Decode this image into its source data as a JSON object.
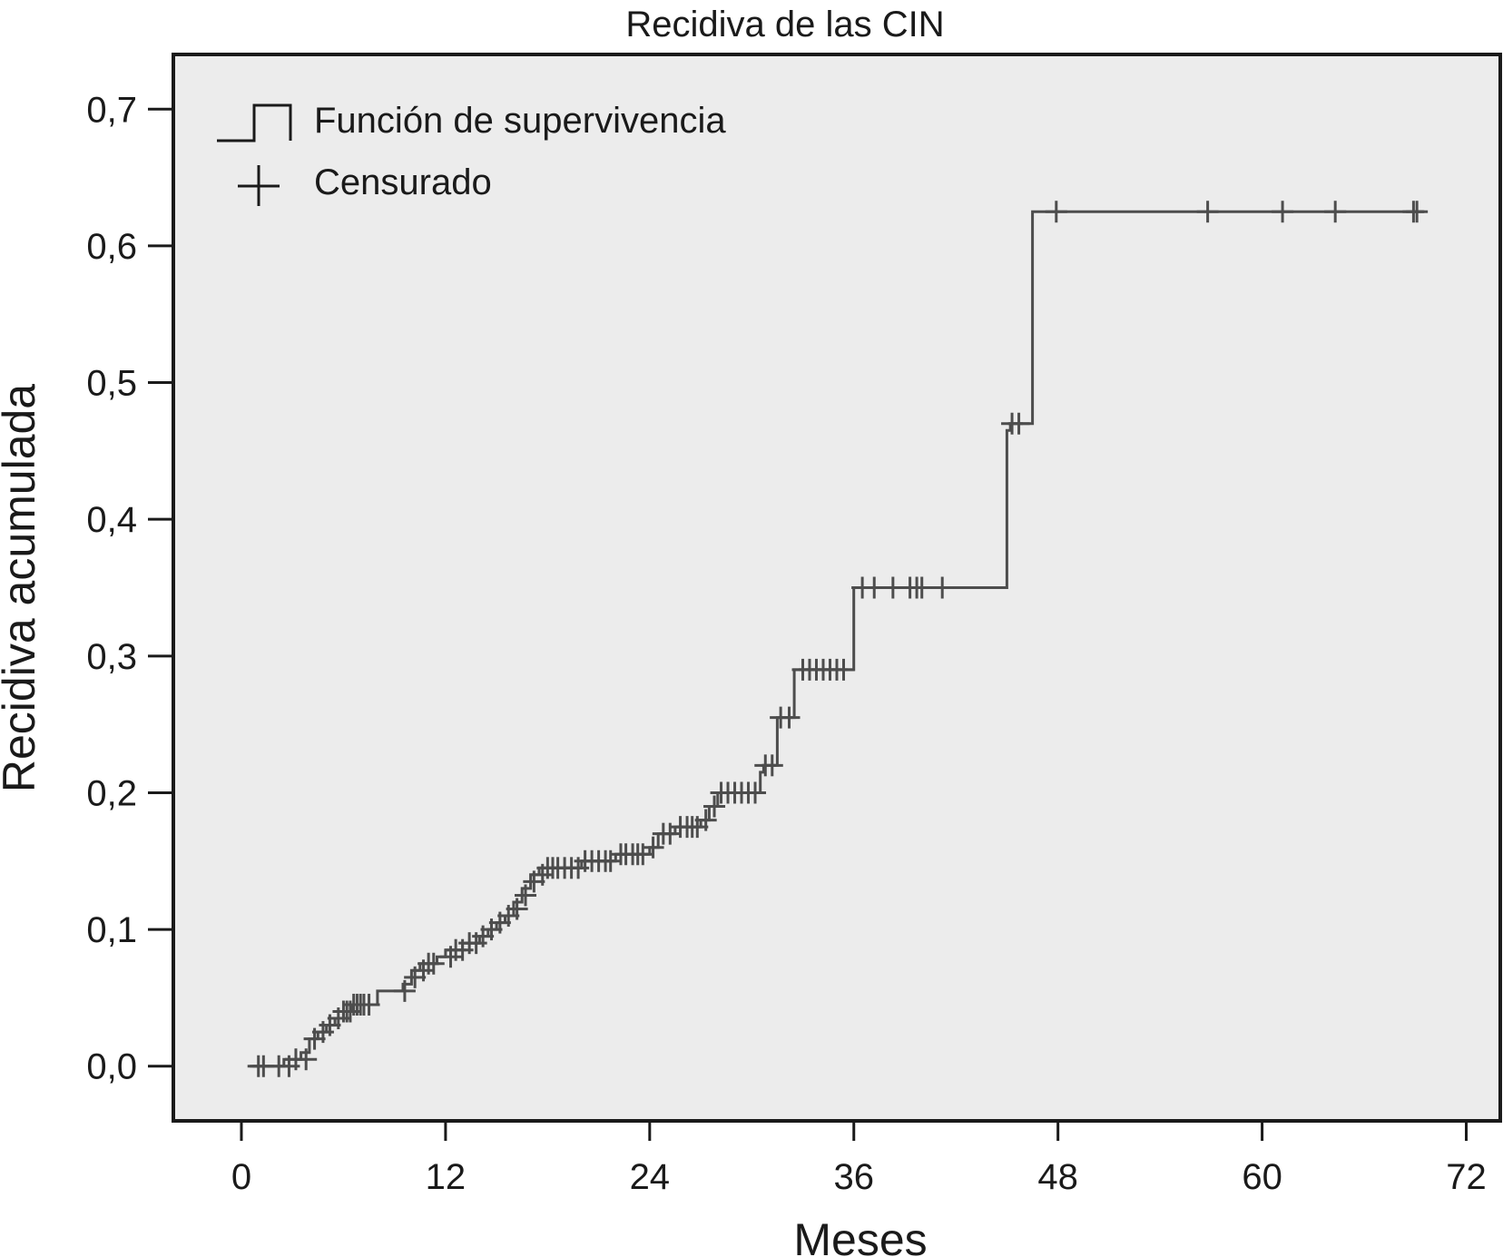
{
  "chart_data": {
    "type": "line",
    "title": "Recidiva de las CIN",
    "xlabel": "Meses",
    "ylabel": "Recidiva acumulada",
    "xlim": [
      -4,
      74
    ],
    "ylim": [
      -0.04,
      0.74
    ],
    "x_ticks": [
      0,
      12,
      24,
      36,
      48,
      60,
      72
    ],
    "x_tick_labels": [
      "0",
      "12",
      "24",
      "36",
      "48",
      "60",
      "72"
    ],
    "y_ticks": [
      0.0,
      0.1,
      0.2,
      0.3,
      0.4,
      0.5,
      0.6,
      0.7
    ],
    "y_tick_labels": [
      "0,0",
      "0,1",
      "0,2",
      "0,3",
      "0,4",
      "0,5",
      "0,6",
      "0,7"
    ],
    "grid": false,
    "legend_position": "top-left",
    "colors": {
      "line": "#4d4d4d",
      "plot_background": "#ececec",
      "axis": "#1a1a1a"
    },
    "legend": [
      {
        "label": "Función de supervivencia",
        "symbol": "step-line"
      },
      {
        "label": "Censurado",
        "symbol": "plus"
      }
    ],
    "series": [
      {
        "name": "Función de supervivencia",
        "points": [
          [
            0.5,
            0.0
          ],
          [
            2.5,
            0.0
          ],
          [
            2.5,
            0.005
          ],
          [
            3.5,
            0.005
          ],
          [
            3.5,
            0.01
          ],
          [
            4.0,
            0.01
          ],
          [
            4.0,
            0.02
          ],
          [
            4.5,
            0.02
          ],
          [
            4.5,
            0.025
          ],
          [
            5.0,
            0.025
          ],
          [
            5.0,
            0.03
          ],
          [
            5.5,
            0.03
          ],
          [
            5.5,
            0.035
          ],
          [
            6.0,
            0.035
          ],
          [
            6.0,
            0.04
          ],
          [
            6.5,
            0.04
          ],
          [
            6.5,
            0.045
          ],
          [
            8.0,
            0.045
          ],
          [
            8.0,
            0.055
          ],
          [
            9.5,
            0.055
          ],
          [
            9.5,
            0.06
          ],
          [
            10.0,
            0.06
          ],
          [
            10.0,
            0.07
          ],
          [
            10.5,
            0.07
          ],
          [
            10.5,
            0.075
          ],
          [
            11.5,
            0.075
          ],
          [
            11.5,
            0.08
          ],
          [
            12.0,
            0.08
          ],
          [
            12.0,
            0.085
          ],
          [
            13.0,
            0.085
          ],
          [
            13.0,
            0.09
          ],
          [
            14.0,
            0.09
          ],
          [
            14.0,
            0.095
          ],
          [
            14.5,
            0.095
          ],
          [
            14.5,
            0.1
          ],
          [
            15.0,
            0.1
          ],
          [
            15.0,
            0.105
          ],
          [
            15.5,
            0.105
          ],
          [
            15.5,
            0.11
          ],
          [
            16.0,
            0.11
          ],
          [
            16.0,
            0.12
          ],
          [
            16.5,
            0.12
          ],
          [
            16.5,
            0.13
          ],
          [
            17.0,
            0.13
          ],
          [
            17.0,
            0.14
          ],
          [
            17.5,
            0.14
          ],
          [
            17.5,
            0.145
          ],
          [
            20.0,
            0.145
          ],
          [
            20.0,
            0.15
          ],
          [
            22.0,
            0.15
          ],
          [
            22.0,
            0.155
          ],
          [
            24.0,
            0.155
          ],
          [
            24.0,
            0.16
          ],
          [
            24.5,
            0.16
          ],
          [
            24.5,
            0.17
          ],
          [
            25.5,
            0.17
          ],
          [
            25.5,
            0.175
          ],
          [
            27.0,
            0.175
          ],
          [
            27.0,
            0.18
          ],
          [
            27.5,
            0.18
          ],
          [
            27.5,
            0.19
          ],
          [
            28.0,
            0.19
          ],
          [
            28.0,
            0.2
          ],
          [
            30.5,
            0.2
          ],
          [
            30.5,
            0.215
          ],
          [
            30.7,
            0.215
          ],
          [
            30.7,
            0.22
          ],
          [
            31.5,
            0.22
          ],
          [
            31.5,
            0.255
          ],
          [
            32.5,
            0.255
          ],
          [
            32.5,
            0.29
          ],
          [
            36.0,
            0.29
          ],
          [
            36.0,
            0.35
          ],
          [
            45.0,
            0.35
          ],
          [
            45.0,
            0.465
          ],
          [
            45.2,
            0.465
          ],
          [
            45.2,
            0.47
          ],
          [
            46.5,
            0.47
          ],
          [
            46.5,
            0.625
          ],
          [
            69.5,
            0.625
          ]
        ]
      },
      {
        "name": "Censurado",
        "points": [
          [
            1.0,
            0.0
          ],
          [
            1.3,
            0.0
          ],
          [
            2.2,
            0.0
          ],
          [
            2.8,
            0.0
          ],
          [
            3.2,
            0.005
          ],
          [
            3.8,
            0.005
          ],
          [
            4.3,
            0.02
          ],
          [
            4.8,
            0.025
          ],
          [
            5.2,
            0.03
          ],
          [
            5.7,
            0.035
          ],
          [
            6.0,
            0.04
          ],
          [
            6.2,
            0.04
          ],
          [
            6.4,
            0.04
          ],
          [
            6.6,
            0.045
          ],
          [
            6.8,
            0.045
          ],
          [
            7.0,
            0.045
          ],
          [
            7.2,
            0.045
          ],
          [
            7.5,
            0.045
          ],
          [
            9.6,
            0.055
          ],
          [
            10.2,
            0.065
          ],
          [
            10.7,
            0.07
          ],
          [
            11.0,
            0.075
          ],
          [
            11.3,
            0.075
          ],
          [
            12.3,
            0.08
          ],
          [
            12.6,
            0.085
          ],
          [
            13.0,
            0.085
          ],
          [
            13.4,
            0.09
          ],
          [
            13.8,
            0.09
          ],
          [
            14.2,
            0.095
          ],
          [
            14.7,
            0.1
          ],
          [
            15.2,
            0.105
          ],
          [
            15.7,
            0.11
          ],
          [
            16.2,
            0.115
          ],
          [
            16.7,
            0.125
          ],
          [
            17.2,
            0.135
          ],
          [
            17.7,
            0.14
          ],
          [
            18.0,
            0.145
          ],
          [
            18.3,
            0.145
          ],
          [
            18.6,
            0.145
          ],
          [
            19.0,
            0.145
          ],
          [
            19.4,
            0.145
          ],
          [
            19.8,
            0.145
          ],
          [
            20.2,
            0.15
          ],
          [
            20.6,
            0.15
          ],
          [
            21.0,
            0.15
          ],
          [
            21.4,
            0.15
          ],
          [
            21.7,
            0.15
          ],
          [
            22.3,
            0.155
          ],
          [
            22.6,
            0.155
          ],
          [
            23.0,
            0.155
          ],
          [
            23.3,
            0.155
          ],
          [
            23.6,
            0.155
          ],
          [
            24.2,
            0.16
          ],
          [
            24.8,
            0.17
          ],
          [
            25.2,
            0.17
          ],
          [
            25.8,
            0.175
          ],
          [
            26.2,
            0.175
          ],
          [
            26.5,
            0.175
          ],
          [
            26.8,
            0.175
          ],
          [
            27.3,
            0.18
          ],
          [
            27.8,
            0.19
          ],
          [
            28.2,
            0.2
          ],
          [
            28.6,
            0.2
          ],
          [
            29.0,
            0.2
          ],
          [
            29.4,
            0.2
          ],
          [
            29.8,
            0.2
          ],
          [
            30.2,
            0.2
          ],
          [
            30.8,
            0.22
          ],
          [
            31.2,
            0.22
          ],
          [
            31.7,
            0.255
          ],
          [
            32.2,
            0.255
          ],
          [
            33.0,
            0.29
          ],
          [
            33.4,
            0.29
          ],
          [
            33.8,
            0.29
          ],
          [
            34.2,
            0.29
          ],
          [
            34.6,
            0.29
          ],
          [
            35.0,
            0.29
          ],
          [
            35.4,
            0.29
          ],
          [
            36.5,
            0.35
          ],
          [
            37.2,
            0.35
          ],
          [
            38.3,
            0.35
          ],
          [
            39.3,
            0.35
          ],
          [
            39.7,
            0.35
          ],
          [
            40.0,
            0.35
          ],
          [
            41.2,
            0.35
          ],
          [
            45.3,
            0.47
          ],
          [
            45.7,
            0.47
          ],
          [
            47.9,
            0.625
          ],
          [
            56.8,
            0.625
          ],
          [
            61.2,
            0.625
          ],
          [
            64.3,
            0.625
          ],
          [
            68.9,
            0.625
          ],
          [
            69.1,
            0.625
          ]
        ]
      }
    ]
  }
}
